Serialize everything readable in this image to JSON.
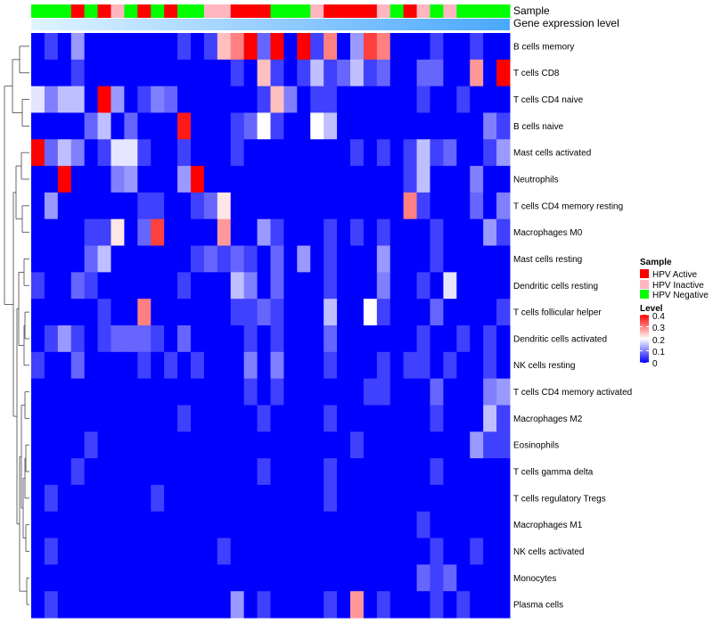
{
  "chart_data": {
    "type": "heatmap",
    "annotation_rows": [
      "Sample",
      "Gene expression level"
    ],
    "rows": [
      "B cells memory",
      "T cells CD8",
      "T cells CD4 naive",
      "B cells naive",
      "Mast cells activated",
      "Neutrophils",
      "T cells CD4 memory resting",
      "Macrophages M0",
      "Mast cells resting",
      "Dendritic cells resting",
      "T cells follicular helper",
      "Dendritic cells activated",
      "NK cells resting",
      "T cells CD4 memory activated",
      "Macrophages M2",
      "Eosinophils",
      "T cells gamma delta",
      "T cells regulatory  Tregs",
      "Macrophages M1",
      "NK cells activated",
      "Monocytes",
      "Plasma cells"
    ],
    "n_columns": 36,
    "sample_groups": [
      "HPV Negative",
      "HPV Negative",
      "HPV Negative",
      "HPV Active",
      "HPV Negative",
      "HPV Active",
      "HPV Inactive",
      "HPV Negative",
      "HPV Active",
      "HPV Negative",
      "HPV Active",
      "HPV Negative",
      "HPV Negative",
      "HPV Inactive",
      "HPV Inactive",
      "HPV Active",
      "HPV Active",
      "HPV Active",
      "HPV Negative",
      "HPV Negative",
      "HPV Negative",
      "HPV Inactive",
      "HPV Active",
      "HPV Active",
      "HPV Active",
      "HPV Active",
      "HPV Inactive",
      "HPV Negative",
      "HPV Active",
      "HPV Inactive",
      "HPV Negative",
      "HPV Inactive",
      "HPV Negative",
      "HPV Negative",
      "HPV Negative",
      "HPV Negative"
    ],
    "values": [
      [
        0.0,
        0.05,
        0.0,
        0.12,
        0.0,
        0.0,
        0.0,
        0.0,
        0.0,
        0.0,
        0.0,
        0.05,
        0.0,
        0.05,
        0.25,
        0.3,
        0.4,
        0.08,
        0.42,
        0.0,
        0.4,
        0.05,
        0.3,
        0.0,
        0.12,
        0.35,
        0.3,
        0.0,
        0.0,
        0.0,
        0.05,
        0.0,
        0.0,
        0.05,
        0.0,
        0.0
      ],
      [
        0.0,
        0.0,
        0.0,
        0.05,
        0.0,
        0.0,
        0.0,
        0.0,
        0.0,
        0.0,
        0.0,
        0.0,
        0.0,
        0.0,
        0.0,
        0.05,
        0.0,
        0.25,
        0.05,
        0.0,
        0.05,
        0.15,
        0.05,
        0.08,
        0.15,
        0.05,
        0.08,
        0.0,
        0.0,
        0.08,
        0.08,
        0.0,
        0.0,
        0.28,
        0.0,
        0.4
      ],
      [
        0.18,
        0.1,
        0.15,
        0.15,
        0.0,
        0.4,
        0.12,
        0.0,
        0.05,
        0.1,
        0.08,
        0.0,
        0.0,
        0.0,
        0.0,
        0.0,
        0.0,
        0.05,
        0.25,
        0.1,
        0.0,
        0.05,
        0.05,
        0.0,
        0.0,
        0.0,
        0.0,
        0.0,
        0.0,
        0.05,
        0.0,
        0.0,
        0.05,
        0.0,
        0.0,
        0.0
      ],
      [
        0.0,
        0.0,
        0.0,
        0.0,
        0.08,
        0.15,
        0.0,
        0.08,
        0.0,
        0.0,
        0.0,
        0.38,
        0.0,
        0.0,
        0.0,
        0.05,
        0.08,
        0.2,
        0.05,
        0.0,
        0.0,
        0.2,
        0.15,
        0.0,
        0.0,
        0.0,
        0.0,
        0.0,
        0.0,
        0.0,
        0.0,
        0.0,
        0.0,
        0.0,
        0.1,
        0.05
      ],
      [
        0.4,
        0.08,
        0.15,
        0.1,
        0.0,
        0.05,
        0.18,
        0.18,
        0.05,
        0.0,
        0.0,
        0.05,
        0.0,
        0.0,
        0.0,
        0.05,
        0.0,
        0.0,
        0.0,
        0.0,
        0.0,
        0.0,
        0.0,
        0.0,
        0.05,
        0.0,
        0.05,
        0.0,
        0.05,
        0.15,
        0.05,
        0.08,
        0.0,
        0.0,
        0.05,
        0.12
      ],
      [
        0.0,
        0.0,
        0.4,
        0.0,
        0.0,
        0.0,
        0.1,
        0.12,
        0.0,
        0.0,
        0.0,
        0.12,
        0.42,
        0.0,
        0.0,
        0.0,
        0.0,
        0.0,
        0.0,
        0.0,
        0.0,
        0.0,
        0.0,
        0.0,
        0.0,
        0.0,
        0.0,
        0.0,
        0.05,
        0.15,
        0.0,
        0.0,
        0.0,
        0.1,
        0.0,
        0.0
      ],
      [
        0.0,
        0.12,
        0.0,
        0.0,
        0.0,
        0.0,
        0.0,
        0.0,
        0.05,
        0.05,
        0.0,
        0.0,
        0.05,
        0.08,
        0.22,
        0.0,
        0.0,
        0.0,
        0.0,
        0.0,
        0.0,
        0.0,
        0.0,
        0.0,
        0.0,
        0.0,
        0.0,
        0.0,
        0.3,
        0.05,
        0.0,
        0.0,
        0.0,
        0.08,
        0.0,
        0.1
      ],
      [
        0.0,
        0.0,
        0.0,
        0.0,
        0.05,
        0.05,
        0.22,
        0.0,
        0.08,
        0.35,
        0.0,
        0.0,
        0.0,
        0.0,
        0.28,
        0.0,
        0.0,
        0.12,
        0.05,
        0.0,
        0.0,
        0.0,
        0.05,
        0.0,
        0.05,
        0.0,
        0.05,
        0.0,
        0.0,
        0.0,
        0.05,
        0.0,
        0.0,
        0.0,
        0.12,
        0.05
      ],
      [
        0.0,
        0.0,
        0.0,
        0.0,
        0.08,
        0.15,
        0.0,
        0.0,
        0.0,
        0.0,
        0.0,
        0.0,
        0.05,
        0.08,
        0.05,
        0.08,
        0.05,
        0.0,
        0.08,
        0.0,
        0.12,
        0.0,
        0.05,
        0.0,
        0.0,
        0.0,
        0.12,
        0.0,
        0.0,
        0.0,
        0.05,
        0.0,
        0.0,
        0.0,
        0.0,
        0.0
      ],
      [
        0.05,
        0.0,
        0.0,
        0.08,
        0.05,
        0.0,
        0.0,
        0.0,
        0.0,
        0.0,
        0.0,
        0.05,
        0.0,
        0.0,
        0.0,
        0.15,
        0.1,
        0.0,
        0.08,
        0.0,
        0.0,
        0.0,
        0.05,
        0.0,
        0.0,
        0.0,
        0.1,
        0.0,
        0.0,
        0.05,
        0.0,
        0.18,
        0.0,
        0.0,
        0.0,
        0.0
      ],
      [
        0.0,
        0.0,
        0.0,
        0.0,
        0.0,
        0.05,
        0.0,
        0.0,
        0.3,
        0.0,
        0.0,
        0.0,
        0.0,
        0.0,
        0.0,
        0.05,
        0.05,
        0.08,
        0.05,
        0.0,
        0.0,
        0.0,
        0.15,
        0.0,
        0.0,
        0.2,
        0.05,
        0.0,
        0.0,
        0.0,
        0.08,
        0.0,
        0.0,
        0.0,
        0.0,
        0.05
      ],
      [
        0.0,
        0.05,
        0.12,
        0.05,
        0.0,
        0.05,
        0.08,
        0.08,
        0.08,
        0.05,
        0.0,
        0.08,
        0.0,
        0.0,
        0.0,
        0.0,
        0.05,
        0.0,
        0.05,
        0.0,
        0.0,
        0.0,
        0.08,
        0.0,
        0.0,
        0.0,
        0.0,
        0.0,
        0.0,
        0.05,
        0.0,
        0.0,
        0.05,
        0.0,
        0.05,
        0.0
      ],
      [
        0.05,
        0.0,
        0.0,
        0.08,
        0.0,
        0.0,
        0.0,
        0.0,
        0.05,
        0.0,
        0.05,
        0.0,
        0.05,
        0.0,
        0.0,
        0.0,
        0.1,
        0.0,
        0.1,
        0.0,
        0.0,
        0.0,
        0.05,
        0.0,
        0.0,
        0.0,
        0.05,
        0.0,
        0.05,
        0.05,
        0.0,
        0.05,
        0.0,
        0.0,
        0.05,
        0.0
      ],
      [
        0.0,
        0.0,
        0.0,
        0.0,
        0.0,
        0.0,
        0.0,
        0.0,
        0.0,
        0.0,
        0.0,
        0.0,
        0.0,
        0.0,
        0.0,
        0.0,
        0.05,
        0.0,
        0.05,
        0.0,
        0.0,
        0.0,
        0.0,
        0.0,
        0.0,
        0.05,
        0.05,
        0.0,
        0.0,
        0.0,
        0.08,
        0.0,
        0.0,
        0.0,
        0.1,
        0.12
      ],
      [
        0.0,
        0.0,
        0.0,
        0.0,
        0.0,
        0.0,
        0.0,
        0.0,
        0.0,
        0.0,
        0.0,
        0.05,
        0.0,
        0.0,
        0.0,
        0.0,
        0.0,
        0.05,
        0.0,
        0.0,
        0.0,
        0.0,
        0.05,
        0.0,
        0.0,
        0.0,
        0.0,
        0.0,
        0.0,
        0.0,
        0.05,
        0.0,
        0.0,
        0.0,
        0.15,
        0.05
      ],
      [
        0.0,
        0.0,
        0.0,
        0.0,
        0.05,
        0.0,
        0.0,
        0.0,
        0.0,
        0.0,
        0.0,
        0.0,
        0.0,
        0.0,
        0.0,
        0.0,
        0.0,
        0.0,
        0.0,
        0.0,
        0.0,
        0.0,
        0.0,
        0.0,
        0.05,
        0.0,
        0.0,
        0.0,
        0.0,
        0.0,
        0.0,
        0.0,
        0.0,
        0.12,
        0.05,
        0.05
      ],
      [
        0.0,
        0.0,
        0.0,
        0.05,
        0.0,
        0.0,
        0.0,
        0.0,
        0.0,
        0.0,
        0.0,
        0.0,
        0.0,
        0.0,
        0.0,
        0.0,
        0.0,
        0.05,
        0.0,
        0.0,
        0.0,
        0.0,
        0.05,
        0.0,
        0.0,
        0.0,
        0.0,
        0.0,
        0.0,
        0.0,
        0.05,
        0.0,
        0.0,
        0.0,
        0.0,
        0.0
      ],
      [
        0.0,
        0.05,
        0.0,
        0.0,
        0.0,
        0.0,
        0.0,
        0.0,
        0.0,
        0.05,
        0.0,
        0.0,
        0.0,
        0.0,
        0.0,
        0.0,
        0.0,
        0.0,
        0.0,
        0.0,
        0.0,
        0.0,
        0.05,
        0.0,
        0.0,
        0.0,
        0.0,
        0.0,
        0.0,
        0.0,
        0.0,
        0.0,
        0.0,
        0.0,
        0.0,
        0.0
      ],
      [
        0.0,
        0.0,
        0.0,
        0.0,
        0.0,
        0.0,
        0.0,
        0.0,
        0.0,
        0.0,
        0.0,
        0.0,
        0.0,
        0.0,
        0.0,
        0.0,
        0.0,
        0.0,
        0.0,
        0.0,
        0.0,
        0.0,
        0.0,
        0.0,
        0.0,
        0.0,
        0.0,
        0.0,
        0.0,
        0.05,
        0.0,
        0.0,
        0.0,
        0.0,
        0.0,
        0.0
      ],
      [
        0.0,
        0.05,
        0.0,
        0.0,
        0.0,
        0.0,
        0.0,
        0.0,
        0.0,
        0.0,
        0.0,
        0.0,
        0.0,
        0.0,
        0.05,
        0.0,
        0.0,
        0.0,
        0.0,
        0.0,
        0.0,
        0.0,
        0.0,
        0.0,
        0.0,
        0.0,
        0.0,
        0.0,
        0.0,
        0.0,
        0.05,
        0.0,
        0.0,
        0.05,
        0.0,
        0.0
      ],
      [
        0.0,
        0.0,
        0.0,
        0.0,
        0.0,
        0.0,
        0.0,
        0.0,
        0.0,
        0.0,
        0.0,
        0.0,
        0.0,
        0.0,
        0.0,
        0.0,
        0.0,
        0.0,
        0.0,
        0.0,
        0.0,
        0.0,
        0.0,
        0.0,
        0.0,
        0.0,
        0.0,
        0.0,
        0.0,
        0.08,
        0.05,
        0.08,
        0.0,
        0.0,
        0.0,
        0.0
      ],
      [
        0.0,
        0.05,
        0.0,
        0.0,
        0.0,
        0.0,
        0.0,
        0.0,
        0.0,
        0.0,
        0.0,
        0.0,
        0.0,
        0.0,
        0.0,
        0.12,
        0.0,
        0.05,
        0.0,
        0.0,
        0.0,
        0.0,
        0.05,
        0.0,
        0.28,
        0.0,
        0.05,
        0.0,
        0.0,
        0.0,
        0.05,
        0.0,
        0.05,
        0.0,
        0.0,
        0.0
      ]
    ],
    "legend": [
      {
        "title": "Sample",
        "type": "categorical",
        "items": [
          {
            "label": "HPV Active",
            "color": "#ff0000"
          },
          {
            "label": "HPV Inactive",
            "color": "#ffb6c1"
          },
          {
            "label": "HPV Negative",
            "color": "#00ff00"
          }
        ]
      },
      {
        "title": "Level",
        "type": "continuous",
        "ticks": [
          "0.4",
          "0.3",
          "0.2",
          "0.1",
          "0"
        ],
        "tick_values": [
          0.4,
          0.3,
          0.2,
          0.1,
          0
        ],
        "range": [
          0,
          0.4
        ],
        "colors": [
          "#0000ff",
          "#ffffff",
          "#ff0000"
        ]
      }
    ],
    "expression_gradient": [
      "#e0f4ff",
      "#4aa8ff"
    ],
    "dendrogram": "rows"
  }
}
